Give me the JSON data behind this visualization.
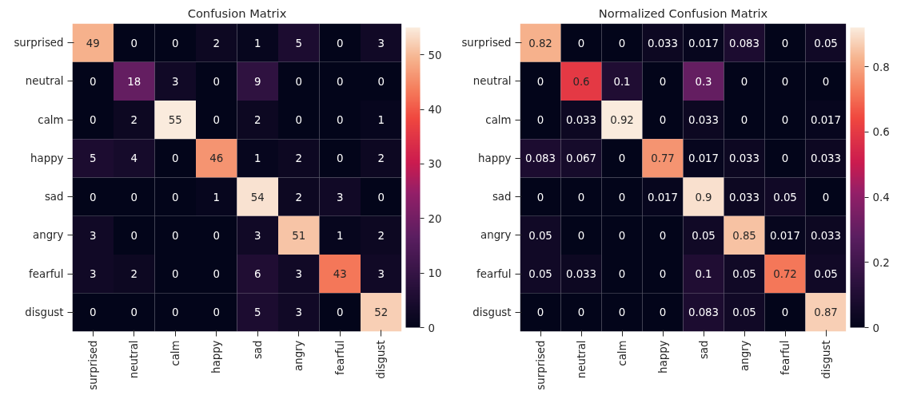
{
  "chart_data": [
    {
      "type": "heatmap",
      "title": "Confusion Matrix",
      "categories": [
        "surprised",
        "neutral",
        "calm",
        "happy",
        "sad",
        "angry",
        "fearful",
        "disgust"
      ],
      "y_categories": [
        "surprised",
        "neutral",
        "calm",
        "happy",
        "sad",
        "angry",
        "fearful",
        "disgust"
      ],
      "cells": [
        [
          49,
          0,
          0,
          2,
          1,
          5,
          0,
          3
        ],
        [
          0,
          18,
          3,
          0,
          9,
          0,
          0,
          0
        ],
        [
          0,
          2,
          55,
          0,
          2,
          0,
          0,
          1
        ],
        [
          5,
          4,
          0,
          46,
          1,
          2,
          0,
          2
        ],
        [
          0,
          0,
          0,
          1,
          54,
          2,
          3,
          0
        ],
        [
          3,
          0,
          0,
          0,
          3,
          51,
          1,
          2
        ],
        [
          3,
          2,
          0,
          0,
          6,
          3,
          43,
          3
        ],
        [
          0,
          0,
          0,
          0,
          5,
          3,
          0,
          52
        ]
      ],
      "clim": [
        0,
        55
      ],
      "cticks": [
        0,
        10,
        20,
        30,
        40,
        50
      ],
      "data_labels": true
    },
    {
      "type": "heatmap",
      "title": "Normalized Confusion Matrix",
      "categories": [
        "surprised",
        "neutral",
        "calm",
        "happy",
        "sad",
        "angry",
        "fearful",
        "disgust"
      ],
      "y_categories": [
        "surprised",
        "neutral",
        "calm",
        "happy",
        "sad",
        "angry",
        "fearful",
        "disgust"
      ],
      "cells": [
        [
          0.82,
          0,
          0,
          0.033,
          0.017,
          0.083,
          0,
          0.05
        ],
        [
          0,
          0.6,
          0.1,
          0,
          0.3,
          0,
          0,
          0
        ],
        [
          0,
          0.033,
          0.92,
          0,
          0.033,
          0,
          0,
          0.017
        ],
        [
          0.083,
          0.067,
          0,
          0.77,
          0.017,
          0.033,
          0,
          0.033
        ],
        [
          0,
          0,
          0,
          0.017,
          0.9,
          0.033,
          0.05,
          0
        ],
        [
          0.05,
          0,
          0,
          0,
          0.05,
          0.85,
          0.017,
          0.033
        ],
        [
          0.05,
          0.033,
          0,
          0,
          0.1,
          0.05,
          0.72,
          0.05
        ],
        [
          0,
          0,
          0,
          0,
          0.083,
          0.05,
          0,
          0.87
        ]
      ],
      "clim": [
        0,
        0.92
      ],
      "cticks": [
        0,
        0.2,
        0.4,
        0.6,
        0.8
      ],
      "data_labels": true
    }
  ]
}
